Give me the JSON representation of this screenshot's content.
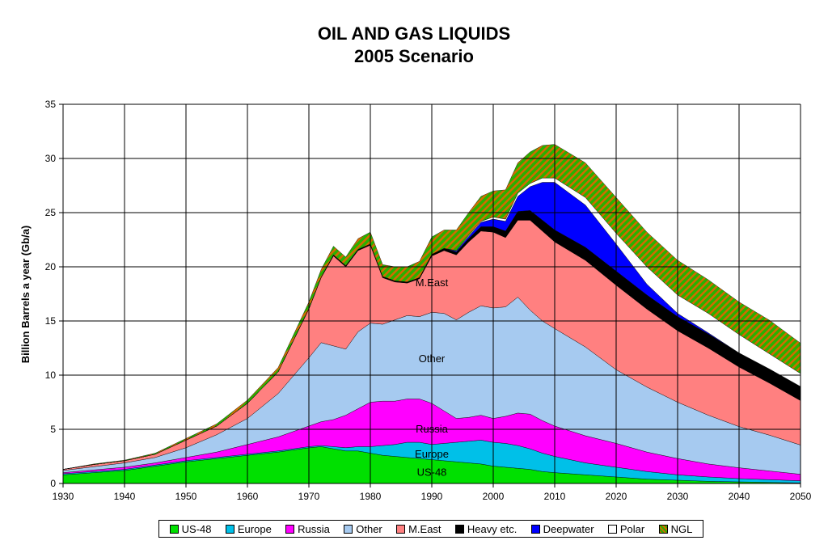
{
  "header": {
    "title_line1": "OIL AND GAS LIQUIDS",
    "title_line2": "2005 Scenario"
  },
  "chart_data": {
    "type": "area",
    "stacked": true,
    "ylabel": "Billion Barrels a year (Gb/a)",
    "xlabel": "",
    "xlim": [
      1930,
      2050
    ],
    "ylim": [
      0,
      35
    ],
    "xticks": [
      1930,
      1940,
      1950,
      1960,
      1970,
      1980,
      1990,
      2000,
      2010,
      2020,
      2030,
      2040,
      2050
    ],
    "yticks": [
      0,
      5,
      10,
      15,
      20,
      25,
      30,
      35
    ],
    "grid": true,
    "legend_position": "bottom",
    "x": [
      1930,
      1935,
      1940,
      1945,
      1950,
      1955,
      1960,
      1965,
      1970,
      1972,
      1974,
      1976,
      1978,
      1980,
      1982,
      1984,
      1986,
      1988,
      1990,
      1992,
      1994,
      1996,
      1998,
      2000,
      2002,
      2004,
      2006,
      2008,
      2010,
      2015,
      2020,
      2025,
      2030,
      2035,
      2040,
      2045,
      2050
    ],
    "series": [
      {
        "name": "US-48",
        "color": "#00e000",
        "pattern": "none",
        "values": [
          0.8,
          1.0,
          1.2,
          1.6,
          2.0,
          2.3,
          2.6,
          2.9,
          3.3,
          3.4,
          3.2,
          3.0,
          3.0,
          2.8,
          2.6,
          2.5,
          2.4,
          2.3,
          2.2,
          2.1,
          2.0,
          1.9,
          1.8,
          1.6,
          1.5,
          1.4,
          1.3,
          1.1,
          1.0,
          0.8,
          0.6,
          0.4,
          0.3,
          0.2,
          0.15,
          0.1,
          0.05
        ]
      },
      {
        "name": "Europe",
        "color": "#00c0e8",
        "pattern": "none",
        "values": [
          0.1,
          0.1,
          0.1,
          0.1,
          0.1,
          0.1,
          0.1,
          0.1,
          0.1,
          0.1,
          0.2,
          0.3,
          0.4,
          0.6,
          0.9,
          1.1,
          1.4,
          1.5,
          1.4,
          1.6,
          1.8,
          2.0,
          2.2,
          2.2,
          2.2,
          2.1,
          1.9,
          1.7,
          1.5,
          1.1,
          0.9,
          0.7,
          0.5,
          0.4,
          0.3,
          0.25,
          0.2
        ]
      },
      {
        "name": "Russia",
        "color": "#ff00ff",
        "pattern": "none",
        "values": [
          0.1,
          0.15,
          0.2,
          0.2,
          0.3,
          0.5,
          0.9,
          1.3,
          1.9,
          2.2,
          2.5,
          3.0,
          3.5,
          4.1,
          4.1,
          4.0,
          4.0,
          4.0,
          3.8,
          3.0,
          2.2,
          2.2,
          2.3,
          2.2,
          2.5,
          3.0,
          3.2,
          3.0,
          2.8,
          2.5,
          2.2,
          1.8,
          1.5,
          1.2,
          1.0,
          0.8,
          0.6
        ]
      },
      {
        "name": "Other",
        "color": "#a6caf0",
        "pattern": "none",
        "values": [
          0.2,
          0.3,
          0.4,
          0.5,
          0.9,
          1.6,
          2.4,
          4.0,
          6.3,
          7.3,
          6.8,
          6.1,
          7.1,
          7.3,
          7.1,
          7.5,
          7.7,
          7.6,
          8.4,
          9.0,
          9.1,
          9.7,
          10.1,
          10.2,
          10.1,
          10.7,
          9.6,
          9.2,
          9.0,
          8.2,
          6.8,
          6.0,
          5.2,
          4.5,
          3.8,
          3.3,
          2.7
        ]
      },
      {
        "name": "M.East",
        "color": "#ff8080",
        "pattern": "none",
        "values": [
          0.1,
          0.2,
          0.2,
          0.3,
          0.7,
          0.8,
          1.4,
          2.0,
          4.5,
          6.0,
          8.3,
          7.6,
          7.5,
          7.2,
          4.3,
          3.5,
          3.0,
          3.5,
          5.2,
          5.8,
          6.0,
          6.5,
          6.9,
          7.0,
          6.4,
          7.1,
          8.3,
          8.3,
          8.0,
          8.0,
          7.8,
          7.2,
          6.6,
          6.2,
          5.5,
          4.8,
          4.1
        ]
      },
      {
        "name": "Heavy etc.",
        "color": "#000000",
        "pattern": "none",
        "values": [
          0,
          0,
          0,
          0,
          0,
          0,
          0,
          0,
          0.05,
          0.05,
          0.1,
          0.1,
          0.1,
          0.1,
          0.1,
          0.1,
          0.1,
          0.1,
          0.15,
          0.2,
          0.25,
          0.3,
          0.4,
          0.5,
          0.6,
          0.8,
          0.9,
          1.0,
          1.1,
          1.2,
          1.3,
          1.3,
          1.3,
          1.3,
          1.3,
          1.3,
          1.3
        ]
      },
      {
        "name": "Deepwater",
        "color": "#0000ff",
        "pattern": "none",
        "values": [
          0,
          0,
          0,
          0,
          0,
          0,
          0,
          0,
          0,
          0,
          0,
          0,
          0,
          0,
          0,
          0,
          0,
          0,
          0,
          0,
          0.1,
          0.2,
          0.4,
          0.7,
          0.9,
          1.4,
          2.2,
          3.5,
          4.4,
          3.9,
          2.5,
          1.0,
          0.3,
          0.1,
          0,
          0,
          0
        ]
      },
      {
        "name": "Polar",
        "color": "#ffffff",
        "pattern": "none",
        "values": [
          0,
          0,
          0,
          0,
          0,
          0,
          0,
          0,
          0,
          0,
          0,
          0,
          0,
          0,
          0,
          0,
          0,
          0,
          0,
          0,
          0.05,
          0.1,
          0.1,
          0.2,
          0.2,
          0.3,
          0.3,
          0.4,
          0.4,
          0.7,
          1.0,
          1.6,
          1.7,
          1.8,
          1.7,
          1.4,
          1.2
        ]
      },
      {
        "name": "NGL",
        "color": "#d46a00",
        "pattern": "hatch",
        "values": [
          0,
          0.05,
          0.05,
          0.1,
          0.15,
          0.2,
          0.3,
          0.4,
          0.6,
          0.7,
          0.8,
          0.8,
          1.0,
          1.1,
          1.1,
          1.3,
          1.4,
          1.5,
          1.6,
          1.7,
          1.9,
          2.1,
          2.3,
          2.4,
          2.7,
          2.8,
          2.9,
          3.0,
          3.1,
          3.2,
          3.3,
          3.2,
          3.2,
          3.1,
          3.0,
          3.1,
          2.8
        ]
      }
    ],
    "annotations": [
      {
        "text": "M.East",
        "x": 1990,
        "y": 18.5
      },
      {
        "text": "Other",
        "x": 1990,
        "y": 11.5
      },
      {
        "text": "Russia",
        "x": 1990,
        "y": 5.0
      },
      {
        "text": "Europe",
        "x": 1990,
        "y": 2.7
      },
      {
        "text": "US-48",
        "x": 1990,
        "y": 1.0
      }
    ]
  }
}
